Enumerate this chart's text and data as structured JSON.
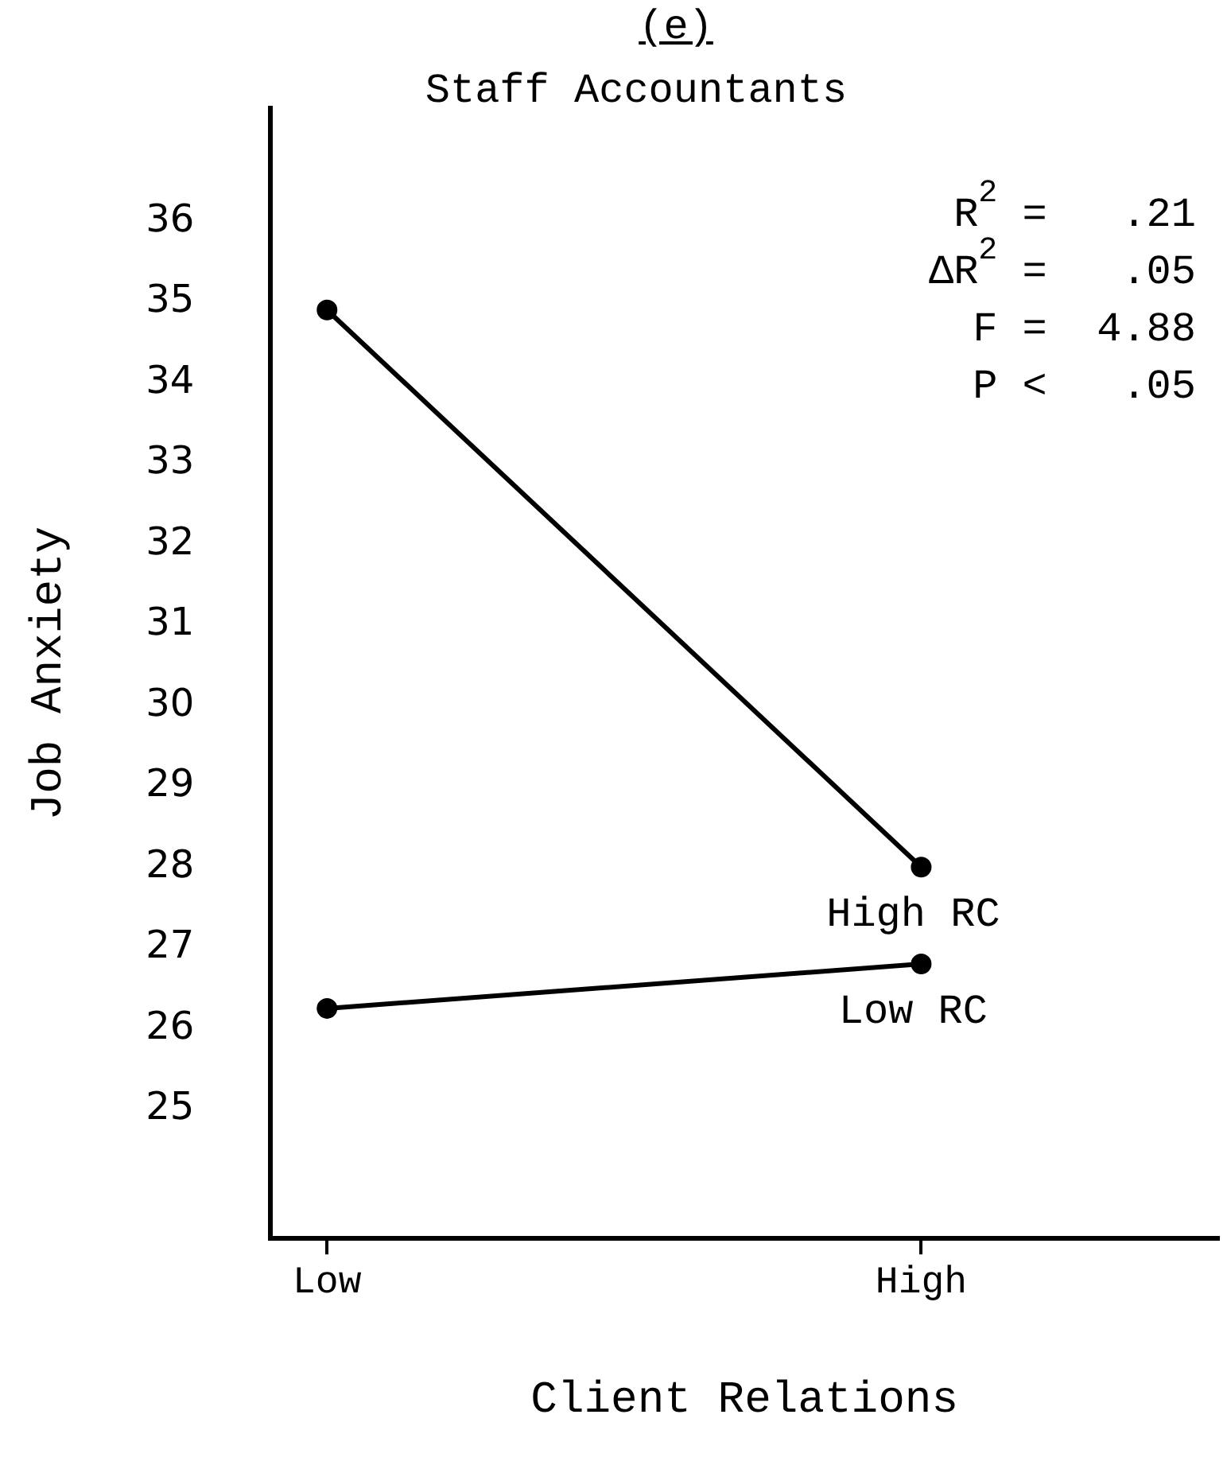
{
  "chart_data": {
    "type": "line",
    "title": "(e)",
    "subtitle": "Staff Accountants",
    "xlabel": "Client Relations",
    "ylabel": "Job Anxiety",
    "categories": [
      "Low",
      "High"
    ],
    "series": [
      {
        "name": "High RC",
        "color": "#000000",
        "values": [
          34.9,
          28.0
        ]
      },
      {
        "name": "Low RC",
        "color": "#000000",
        "values": [
          26.25,
          26.8
        ]
      }
    ],
    "ylim": [
      23.4,
      37.4
    ],
    "yticks": [
      25,
      26,
      27,
      28,
      29,
      30,
      31,
      32,
      33,
      34,
      35,
      36
    ],
    "marker": "circle",
    "line_style": "solid",
    "legend": false,
    "annotations": [
      "R$^{2}$ =   .21",
      "ΔR$^{2}$ =   .05",
      "F =  4.88",
      "P <   .05"
    ]
  }
}
